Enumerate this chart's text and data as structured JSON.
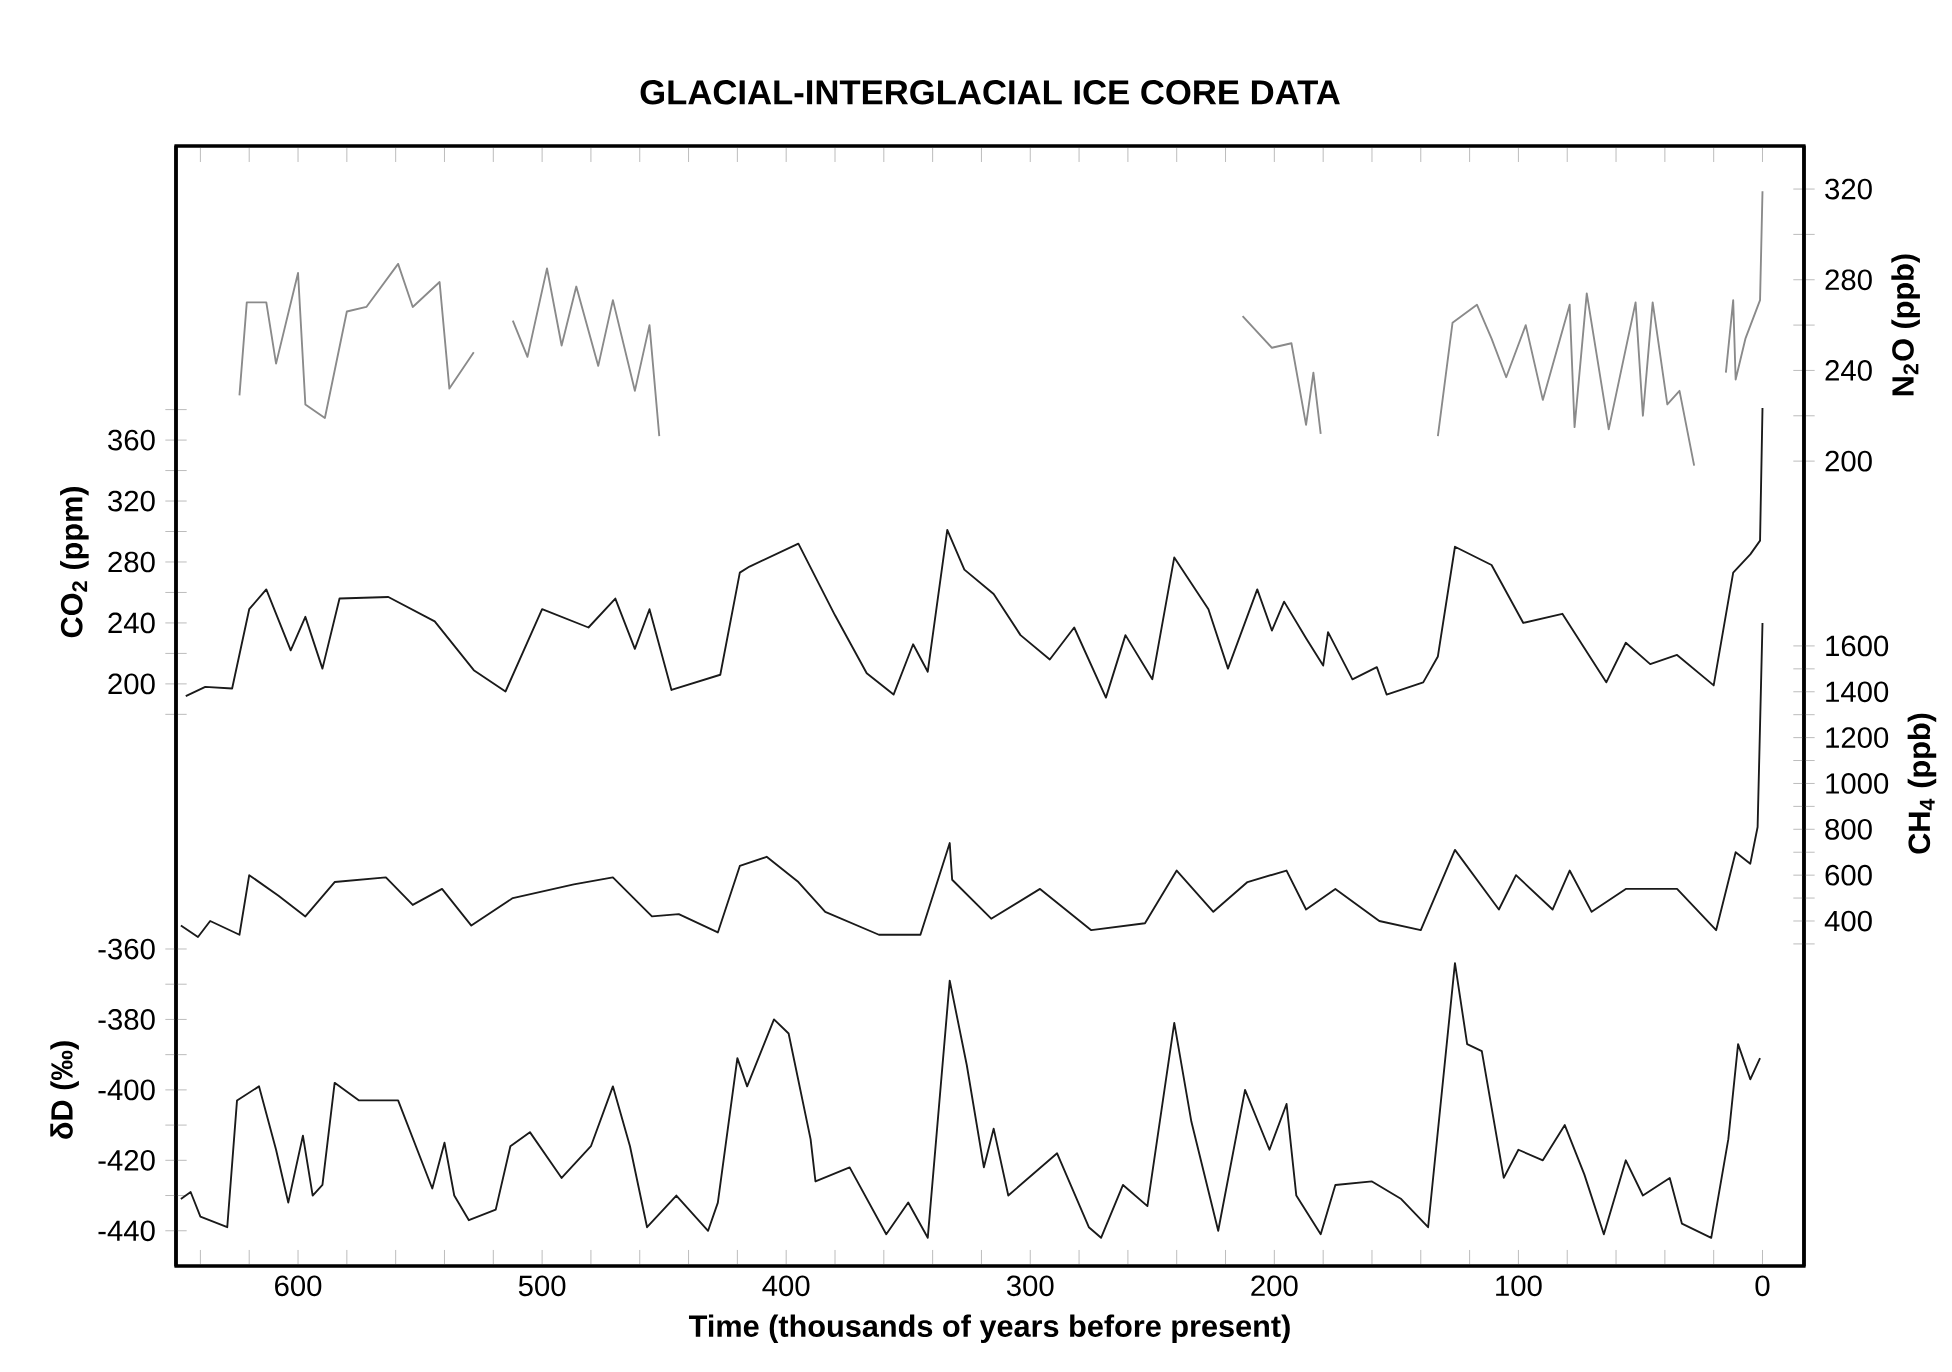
{
  "chart_data": [
    {
      "type": "line",
      "title": "GLACIAL-INTERGLACIAL ICE CORE DATA",
      "tick_labels": "y",
      "ylabel": "CO$_{2}$ (ppm)",
      "y2label": "N$_{2}$O (ppb)",
      "xlim": [
        650,
        -17
      ],
      "ylim": [
        -182,
        553
      ],
      "yticks": [
        {
          "value": 180,
          "label": null
        },
        200,
        {
          "value": 220,
          "label": null
        },
        240,
        {
          "value": 260,
          "label": null
        },
        280,
        {
          "value": 300,
          "label": null
        },
        320,
        {
          "value": 340,
          "label": null
        },
        360,
        {
          "value": 380,
          "label": null
        }
      ],
      "y2lim": [
        -155,
        339
      ],
      "y2ticks": [
        200,
        {
          "value": 220,
          "label": null
        },
        240,
        {
          "value": 260,
          "label": null
        },
        280,
        {
          "value": 300,
          "label": null
        },
        320
      ],
      "line_style": "solid",
      "series": [
        {
          "axis": "y2",
          "color": "#8a8a8a",
          "x": [
            624,
            621,
            613,
            609,
            600,
            597,
            589,
            580,
            572,
            559,
            553,
            542,
            538,
            528,
            520,
            512,
            506,
            498,
            492,
            486,
            477,
            471,
            462,
            456,
            452,
            330,
            213,
            201,
            193,
            187,
            184,
            181,
            160,
            133,
            127,
            117,
            111,
            105,
            97,
            90,
            79,
            77,
            72,
            63,
            52,
            49,
            45,
            39,
            34,
            28,
            22,
            15,
            12,
            11,
            7,
            1,
            0
          ],
          "values": [
            229,
            270,
            270,
            243,
            283,
            225,
            219,
            266,
            268,
            287,
            268,
            279,
            232,
            248,
            null,
            262,
            246,
            285,
            251,
            277,
            242,
            271,
            231,
            260,
            211,
            null,
            264,
            250,
            252,
            216,
            239,
            212,
            null,
            211,
            261,
            269,
            254,
            237,
            260,
            227,
            269,
            215,
            274,
            214,
            270,
            220,
            270,
            225,
            231,
            198,
            null,
            239,
            271,
            236,
            254,
            271,
            319
          ]
        },
        {
          "color": "#1a1a1a",
          "x": [
            646,
            638,
            627,
            620,
            613,
            603,
            597,
            590,
            583,
            563,
            544,
            528,
            515,
            500,
            481,
            470,
            462,
            456,
            447,
            427,
            419,
            415,
            395,
            380,
            367,
            356,
            348,
            342,
            334,
            327,
            315,
            304,
            292,
            282,
            269,
            261,
            250,
            241,
            227,
            219,
            207,
            201,
            196,
            187,
            180,
            178,
            168,
            158,
            154,
            139,
            133,
            126,
            111,
            98,
            82,
            64,
            56,
            46,
            35,
            20,
            12,
            5,
            1,
            0
          ],
          "values": [
            192,
            198,
            197,
            249,
            262,
            222,
            244,
            210,
            256,
            257,
            241,
            209,
            195,
            249,
            237,
            256,
            223,
            249,
            196,
            206,
            273,
            277,
            292,
            245,
            207,
            193,
            226,
            208,
            301,
            275,
            259,
            232,
            216,
            237,
            191,
            232,
            203,
            283,
            249,
            210,
            262,
            235,
            254,
            230,
            212,
            234,
            203,
            211,
            193,
            201,
            218,
            290,
            278,
            240,
            246,
            201,
            227,
            213,
            219,
            199,
            273,
            285,
            294,
            381
          ]
        }
      ]
    },
    {
      "type": "line",
      "xlabel": "Time (thousands of years before present)",
      "ylabel": "δD (‰)",
      "y2label": "CH$_{4}$ (ppb)",
      "xlim": [
        650,
        -17
      ],
      "xticks": [
        {
          "value": 640,
          "label": null
        },
        {
          "value": 620,
          "label": null
        },
        600,
        {
          "value": 580,
          "label": null
        },
        {
          "value": 560,
          "label": null
        },
        {
          "value": 540,
          "label": null
        },
        {
          "value": 520,
          "label": null
        },
        500,
        {
          "value": 480,
          "label": null
        },
        {
          "value": 460,
          "label": null
        },
        {
          "value": 440,
          "label": null
        },
        {
          "value": 420,
          "label": null
        },
        400,
        {
          "value": 380,
          "label": null
        },
        {
          "value": 360,
          "label": null
        },
        {
          "value": 340,
          "label": null
        },
        {
          "value": 320,
          "label": null
        },
        300,
        {
          "value": 280,
          "label": null
        },
        {
          "value": 260,
          "label": null
        },
        {
          "value": 240,
          "label": null
        },
        {
          "value": 220,
          "label": null
        },
        200,
        {
          "value": 180,
          "label": null
        },
        {
          "value": 160,
          "label": null
        },
        {
          "value": 140,
          "label": null
        },
        {
          "value": 120,
          "label": null
        },
        100,
        {
          "value": 80,
          "label": null
        },
        {
          "value": 60,
          "label": null
        },
        {
          "value": 40,
          "label": null
        },
        {
          "value": 20,
          "label": null
        },
        0
      ],
      "ylim": [
        -450,
        -132
      ],
      "yticks": [
        -440,
        {
          "value": -430,
          "label": null
        },
        -420,
        {
          "value": -410,
          "label": null
        },
        -400,
        {
          "value": -390,
          "label": null
        },
        -380,
        {
          "value": -370,
          "label": null
        },
        -360
      ],
      "y2lim": [
        -1105,
        3781
      ],
      "y2ticks": [
        {
          "value": 300,
          "label": null
        },
        400,
        {
          "value": 500,
          "label": null
        },
        600,
        {
          "value": 700,
          "label": null
        },
        800,
        {
          "value": 900,
          "label": null
        },
        1000,
        {
          "value": 1100,
          "label": null
        },
        1200,
        {
          "value": 1300,
          "label": null
        },
        1400,
        {
          "value": 1500,
          "label": null
        },
        1600
      ],
      "line_style": "solid",
      "series": [
        {
          "axis": "y2",
          "color": "#1a1a1a",
          "x": [
            648,
            641,
            636,
            624,
            620,
            608,
            597,
            585,
            564,
            553,
            541,
            529,
            512,
            487,
            471,
            455,
            444,
            428,
            419,
            408,
            395,
            384,
            362,
            345,
            333,
            332,
            316,
            296,
            275,
            253,
            240,
            225,
            211,
            195,
            187,
            175,
            157,
            140,
            126,
            108,
            101,
            86,
            79,
            70,
            56,
            35,
            19,
            11,
            5,
            2,
            0
          ],
          "values": [
            380,
            330,
            400,
            340,
            600,
            510,
            420,
            570,
            590,
            470,
            540,
            380,
            500,
            560,
            590,
            420,
            430,
            350,
            640,
            680,
            570,
            440,
            340,
            340,
            740,
            580,
            410,
            540,
            360,
            390,
            620,
            440,
            570,
            620,
            450,
            540,
            400,
            360,
            710,
            450,
            600,
            450,
            620,
            440,
            540,
            540,
            360,
            700,
            650,
            810,
            1700
          ]
        },
        {
          "color": "#1a1a1a",
          "x": [
            648,
            644,
            640,
            629,
            625,
            616,
            609,
            604,
            598,
            594,
            590,
            585,
            575,
            559,
            545,
            540,
            536,
            530,
            519,
            513,
            505,
            492,
            480,
            471,
            464,
            457,
            445,
            432,
            428,
            420,
            416,
            405,
            399,
            390,
            388,
            374,
            359,
            350,
            342,
            333,
            326,
            319,
            315,
            309,
            289,
            276,
            271,
            262,
            252,
            241,
            234,
            223,
            212,
            202,
            195,
            191,
            181,
            175,
            160,
            148,
            137,
            126,
            121,
            115,
            106,
            100,
            90,
            81,
            73,
            65,
            56,
            49,
            38,
            33,
            21,
            14,
            10,
            5,
            1
          ],
          "values": [
            -431,
            -429,
            -436,
            -439,
            -403,
            -399,
            -417,
            -432,
            -413,
            -430,
            -427,
            -398,
            -403,
            -403,
            -428,
            -415,
            -430,
            -437,
            -434,
            -416,
            -412,
            -425,
            -416,
            -399,
            -416,
            -439,
            -430,
            -440,
            -432,
            -391,
            -399,
            -380,
            -384,
            -414,
            -426,
            -422,
            -441,
            -432,
            -442,
            -369,
            -393,
            -422,
            -411,
            -430,
            -418,
            -439,
            -442,
            -427,
            -433,
            -381,
            -409,
            -440,
            -400,
            -417,
            -404,
            -430,
            -441,
            -427,
            -426,
            -431,
            -439,
            -364,
            -387,
            -389,
            -425,
            -417,
            -420,
            -410,
            -424,
            -441,
            -420,
            -430,
            -425,
            -438,
            -442,
            -414,
            -387,
            -397,
            -391
          ]
        }
      ]
    }
  ]
}
